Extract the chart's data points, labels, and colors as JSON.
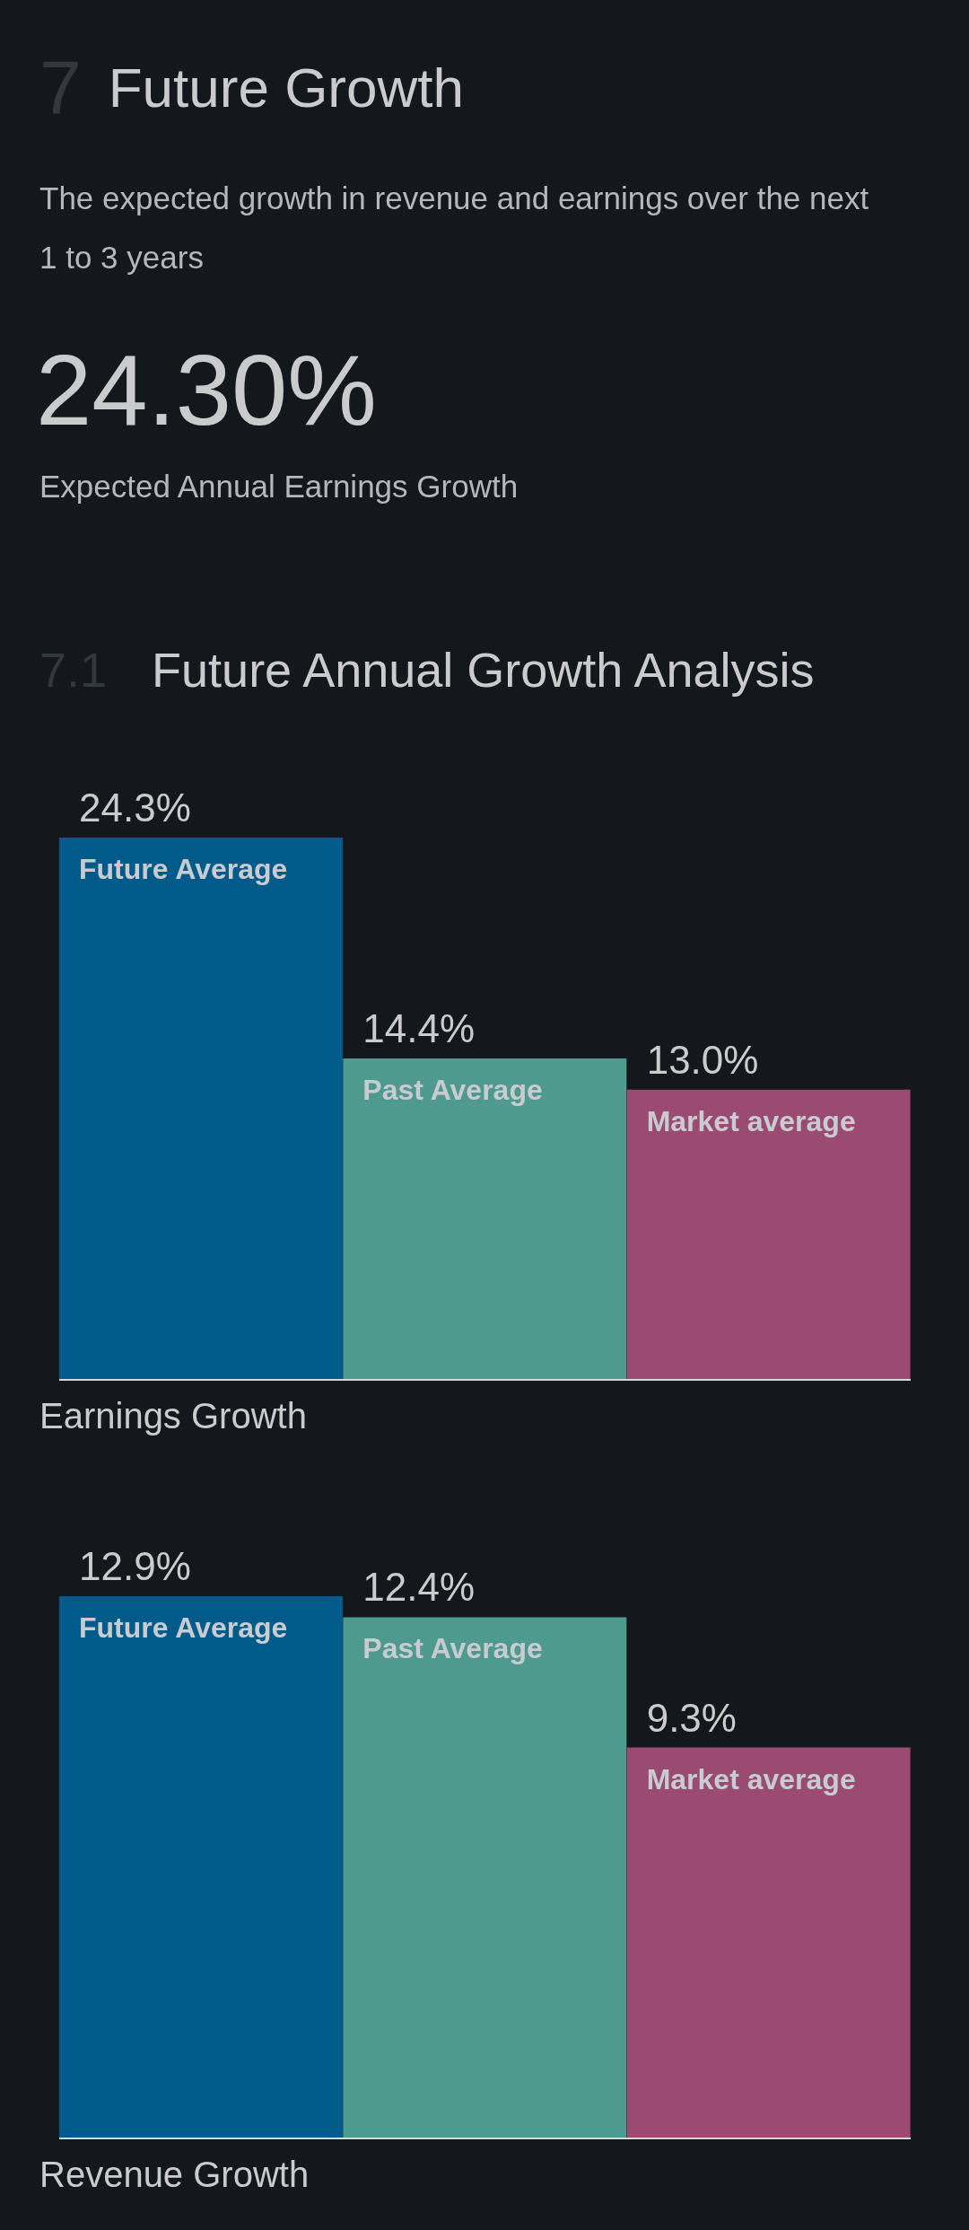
{
  "chart_data": [
    {
      "type": "bar",
      "title": "Future Growth",
      "subtitle": "The expected growth in revenue and earnings over the next 1 to 3 years",
      "annotations": [
        "7",
        "24.30%",
        "Expected Annual Earnings Growth",
        "7.1",
        "Future Annual Growth Analysis"
      ],
      "xlabel": "Earnings Growth",
      "categories": [
        "Future Average",
        "Past Average",
        "Market average"
      ],
      "values": [
        24.3,
        14.4,
        13.0
      ],
      "value_labels": [
        "24.3%",
        "14.4%",
        "13.0%"
      ],
      "colors": [
        "#005a8a",
        "#4e9a8e",
        "#9b4a72"
      ]
    },
    {
      "type": "bar",
      "xlabel": "Revenue Growth",
      "categories": [
        "Future Average",
        "Past Average",
        "Market average"
      ],
      "values": [
        12.9,
        12.4,
        9.3
      ],
      "value_labels": [
        "12.9%",
        "12.4%",
        "9.3%"
      ],
      "colors": [
        "#005a8a",
        "#4e9a8e",
        "#9b4a72"
      ]
    }
  ]
}
